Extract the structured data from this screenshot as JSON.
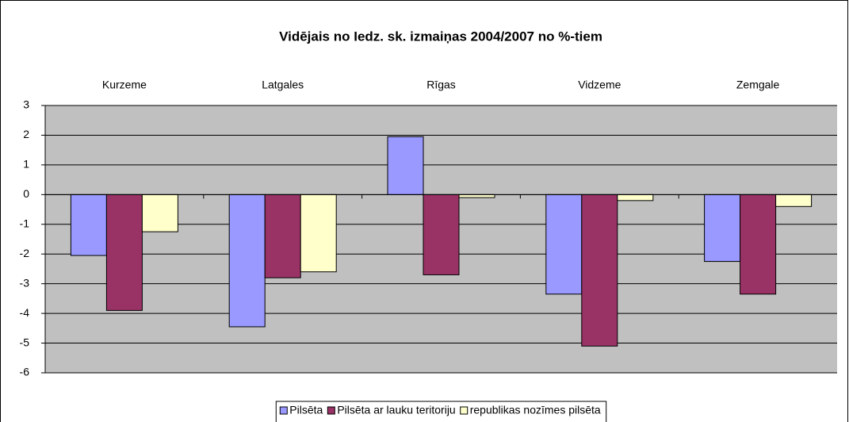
{
  "chart_data": {
    "type": "bar",
    "title": "Vidējais no Iedz. sk. izmaiņas 2004/2007 no %-tiem",
    "categories": [
      "Kurzeme",
      "Latgales",
      "Rīgas",
      "Vidzeme",
      "Zemgale"
    ],
    "series": [
      {
        "name": "Pilsēta",
        "color": "#9999ff",
        "values": [
          -2.05,
          -4.45,
          1.95,
          -3.35,
          -2.25
        ]
      },
      {
        "name": "Pilsēta ar lauku teritoriju",
        "color": "#993366",
        "values": [
          -3.9,
          -2.8,
          -2.7,
          -5.1,
          -3.35
        ]
      },
      {
        "name": "republikas nozīmes pilsēta",
        "color": "#ffffcc",
        "values": [
          -1.25,
          -2.6,
          -0.1,
          -0.2,
          -0.4
        ]
      }
    ],
    "ylim": [
      -6,
      3
    ],
    "yticks": [
      -6,
      -5,
      -4,
      -3,
      -2,
      -1,
      0,
      1,
      2,
      3
    ],
    "grid": true,
    "legend": "bottom"
  }
}
